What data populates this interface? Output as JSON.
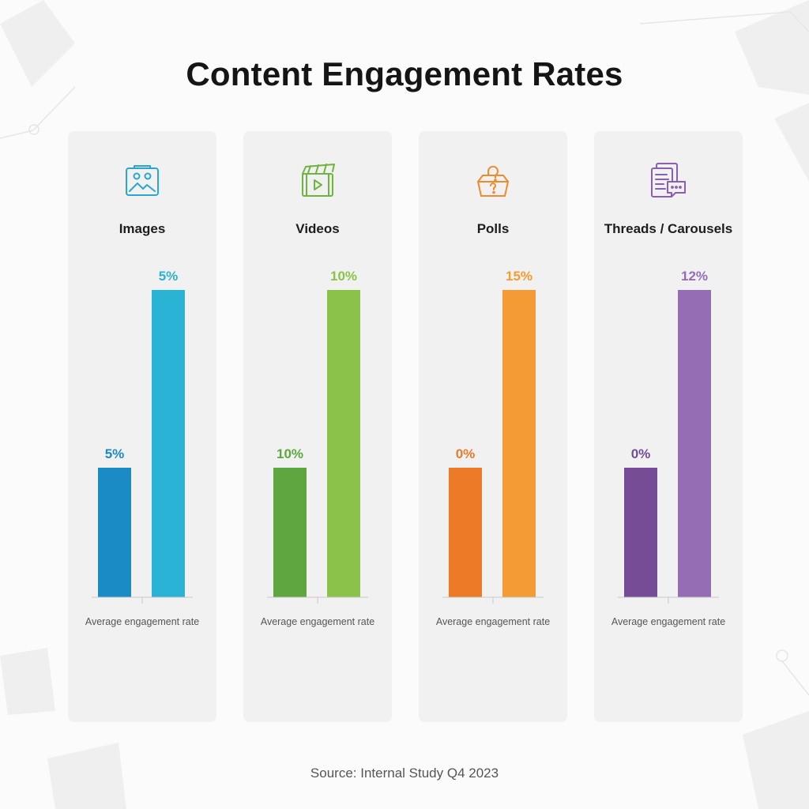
{
  "title": "Content Engagement Rates",
  "source": "Source: Internal Study Q4 2023",
  "chart_data": {
    "type": "bar",
    "title": "Content Engagement Rates",
    "categories": [
      "Images",
      "Videos",
      "Polls",
      "Threads / Carousels"
    ],
    "axis_label": "Average engagement rate",
    "panels": [
      {
        "category": "Images",
        "icon": "image-icon",
        "colors": [
          "#1a8bc4",
          "#2ab3d4"
        ],
        "values": [
          5,
          5
        ],
        "labels": [
          "5%",
          "5%"
        ],
        "axis_label": "Average engagement rate"
      },
      {
        "category": "Videos",
        "icon": "video-icon",
        "colors": [
          "#5fa641",
          "#8bc34a"
        ],
        "values": [
          10,
          10
        ],
        "labels": [
          "10%",
          "10%"
        ],
        "axis_label": "Average engagement rate"
      },
      {
        "category": "Polls",
        "icon": "poll-icon",
        "colors": [
          "#ec7a27",
          "#f59b35"
        ],
        "values": [
          0,
          15
        ],
        "labels": [
          "0%",
          "15%"
        ],
        "axis_label": "Average engagement rate"
      },
      {
        "category": "Threads / Carousels",
        "icon": "threads-icon",
        "colors": [
          "#744b94",
          "#946db4"
        ],
        "values": [
          0,
          12
        ],
        "labels": [
          "0%",
          "12%"
        ],
        "axis_label": "Average engagement rate"
      }
    ]
  }
}
